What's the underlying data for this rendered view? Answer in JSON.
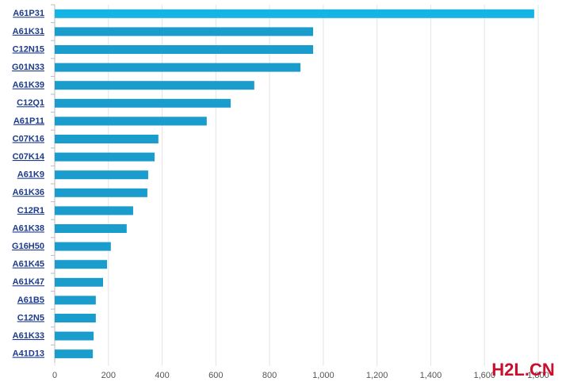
{
  "chart_data": {
    "type": "barh",
    "categories": [
      "A61P31",
      "A61K31",
      "C12N15",
      "G01N33",
      "A61K39",
      "C12Q1",
      "A61P11",
      "C07K16",
      "C07K14",
      "A61K9",
      "A61K36",
      "C12R1",
      "A61K38",
      "G16H50",
      "A61K45",
      "A61K47",
      "A61B5",
      "C12N5",
      "A61K33",
      "A41D13"
    ],
    "values": [
      1785,
      962,
      962,
      915,
      743,
      655,
      566,
      386,
      372,
      348,
      345,
      292,
      268,
      209,
      195,
      180,
      153,
      153,
      145,
      142
    ],
    "colors": [
      "#14b4e4",
      "#1a9ccc",
      "#1a9ccc",
      "#1a9ccc",
      "#1a9ccc",
      "#1a9ccc",
      "#1a9ccc",
      "#1a9ccc",
      "#1a9ccc",
      "#1a9ccc",
      "#1a9ccc",
      "#1a9ccc",
      "#1a9ccc",
      "#1a9ccc",
      "#1a9ccc",
      "#1a9ccc",
      "#1a9ccc",
      "#1a9ccc",
      "#1a9ccc",
      "#1a9ccc"
    ],
    "xlim": [
      0,
      1800
    ],
    "xticks": [
      0,
      200,
      400,
      600,
      800,
      {
        "value": 1000,
        "label": "1,000"
      },
      {
        "value": 1200,
        "label": "1,200"
      },
      {
        "value": 1400,
        "label": "1,400"
      },
      {
        "value": 1600,
        "label": "1,600"
      },
      {
        "value": 1800,
        "label": "1,800"
      }
    ],
    "grid": true,
    "watermark": "H2L.CN"
  }
}
